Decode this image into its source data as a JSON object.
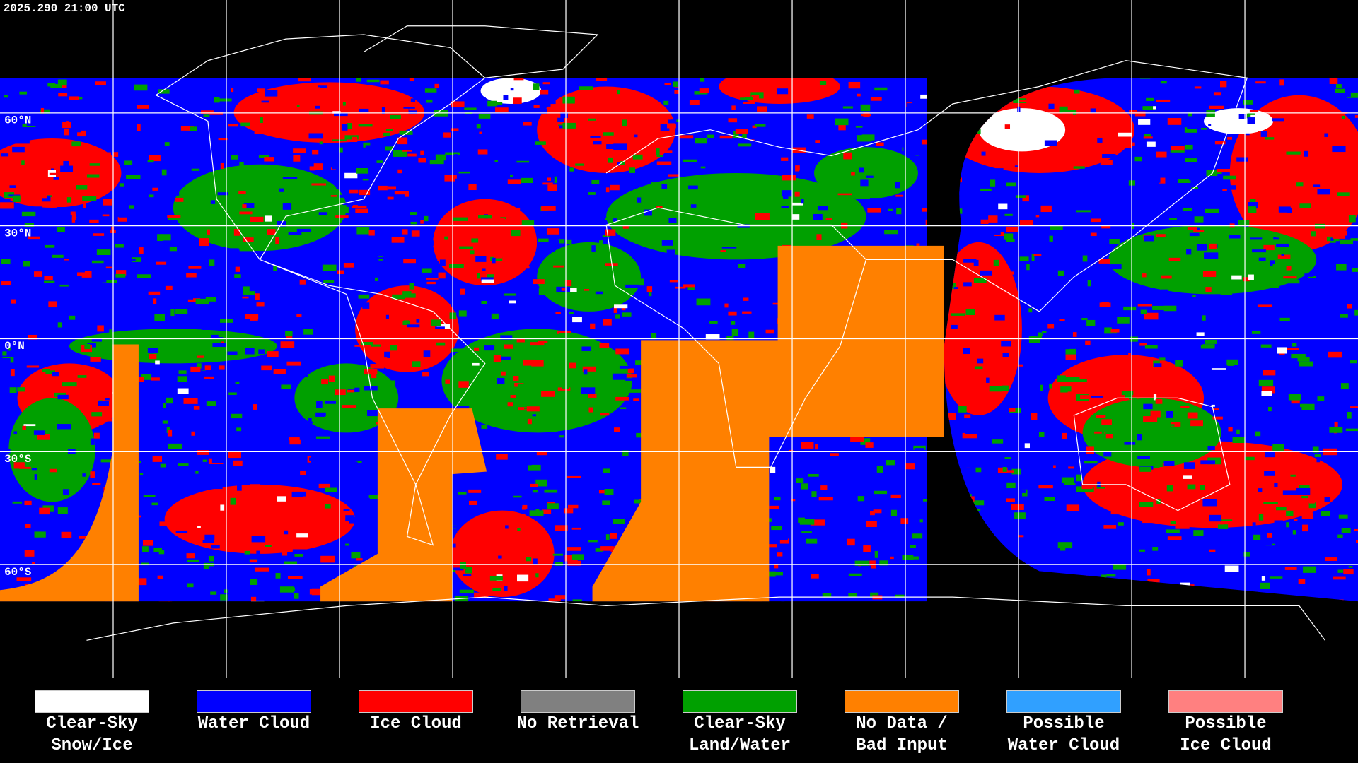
{
  "header": {
    "timestamp": "2025.290 21:00 UTC"
  },
  "map": {
    "lat_labels": [
      "60°N",
      "30°N",
      "0°N",
      "30°S",
      "60°S"
    ]
  },
  "legend": {
    "items": [
      {
        "label": [
          "Clear-Sky",
          "Snow/Ice"
        ],
        "color": "#ffffff"
      },
      {
        "label": [
          "Water Cloud"
        ],
        "color": "#0000ff"
      },
      {
        "label": [
          "Ice Cloud"
        ],
        "color": "#ff0000"
      },
      {
        "label": [
          "No Retrieval"
        ],
        "color": "#808080"
      },
      {
        "label": [
          "Clear-Sky",
          "Land/Water"
        ],
        "color": "#00a000"
      },
      {
        "label": [
          "No Data /",
          "Bad Input"
        ],
        "color": "#ff8000"
      },
      {
        "label": [
          "Possible",
          "Water Cloud"
        ],
        "color": "#30a0ff"
      },
      {
        "label": [
          "Possible",
          "Ice Cloud"
        ],
        "color": "#ff8080"
      }
    ]
  }
}
